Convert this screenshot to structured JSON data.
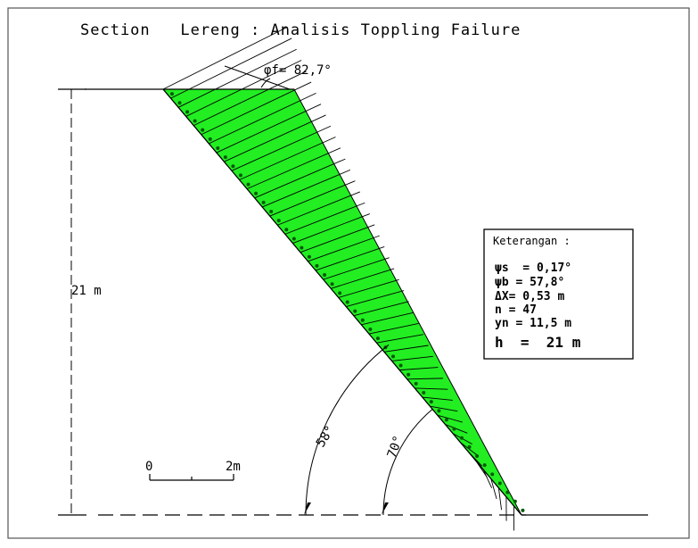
{
  "title": "Section   Lereng : Analisis Toppling Failure",
  "friction_label": "φf= 82,7°",
  "height_label": "21 m",
  "angle_a_label": "58°",
  "angle_b_label": "70°",
  "scale": {
    "zero": "0",
    "two": "2m"
  },
  "legend": {
    "heading": "Keterangan :",
    "lines": [
      "ψs  = 0,17°",
      "ψb = 57,8°",
      "ΔX= 0,53 m",
      "n = 47",
      "yn = 11,5 m"
    ],
    "h_line": "h  =  21 m"
  },
  "colors": {
    "block_fill": "#22ee22",
    "block_dot": "#0a5a0a",
    "ink": "#000000"
  },
  "block_count": 47
}
